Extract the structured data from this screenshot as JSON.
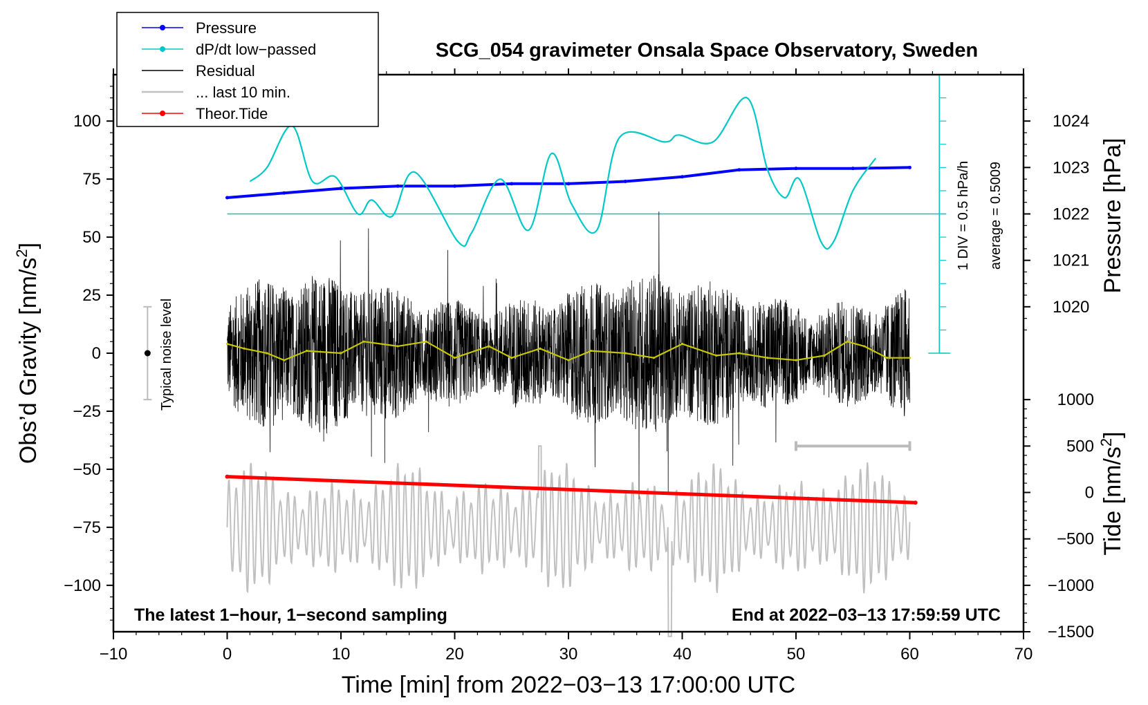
{
  "chart_data": {
    "type": "line",
    "title": "SCG_054 gravimeter Onsala Space Observatory, Sweden",
    "xlabel": "Time [min] from 2022−03−13 17:00:00 UTC",
    "ylabel_left_text": "Obs’d Gravity [nm/s",
    "ylabel_left_sup": "2",
    "ylabel_left_end": "]",
    "ylabel_right_pressure": "Pressure [hPa]",
    "ylabel_right_tide_text": "Tide [nm/s",
    "ylabel_right_tide_sup": "2",
    "ylabel_right_tide_end": "]",
    "xlim": [
      -10,
      70
    ],
    "ylim": [
      -120,
      120
    ],
    "x_ticks": [
      -10,
      0,
      10,
      20,
      30,
      40,
      50,
      60,
      70
    ],
    "x_tick_labels": [
      "−10",
      "0",
      "10",
      "20",
      "30",
      "40",
      "50",
      "60",
      "70"
    ],
    "y_ticks": [
      100,
      75,
      50,
      25,
      0,
      -25,
      -50,
      -75,
      -100
    ],
    "y_tick_labels": [
      "100",
      "75",
      "50",
      "25",
      "0",
      "−25",
      "−50",
      "−75",
      "−100"
    ],
    "pressure_ticks": [
      1024,
      1023,
      1022,
      1021,
      1020
    ],
    "pressure_tick_labels": [
      "1024",
      "1023",
      "1022",
      "1021",
      "1020"
    ],
    "tide_ticks": [
      1000,
      500,
      0,
      -500,
      -1000,
      -1500
    ],
    "tide_tick_labels": [
      "1000",
      "500",
      "0",
      "−500",
      "−1000",
      "−1500"
    ],
    "legend": [
      {
        "label": "Pressure",
        "color": "#0000ff",
        "marker": true
      },
      {
        "label": "dP/dt low−passed",
        "color": "#00c8c8",
        "marker": true
      },
      {
        "label": "Residual",
        "color": "#000000",
        "marker": false
      },
      {
        "label": "... last 10 min.",
        "color": "#c0c0c0",
        "marker": false
      },
      {
        "label": "Theor.Tide",
        "color": "#ff0000",
        "marker": true
      }
    ],
    "annotations": {
      "bottom_left": "The latest 1−hour, 1−second sampling",
      "bottom_right": "End at 2022−03−13 17:59:59 UTC",
      "noise_label": "Typical noise level",
      "dpdt_scale": "1 DIV = 0.5 hPa/h",
      "dpdt_average": "average = 0.5009"
    },
    "series": [
      {
        "name": "Pressure",
        "unit": "hPa",
        "color": "#0000ff",
        "x": [
          0,
          5,
          10,
          15,
          20,
          25,
          30,
          35,
          40,
          45,
          50,
          55,
          60
        ],
        "y": [
          1022.35,
          1022.45,
          1022.55,
          1022.6,
          1022.6,
          1022.65,
          1022.65,
          1022.7,
          1022.8,
          1022.95,
          1022.98,
          1022.98,
          1023.0
        ]
      },
      {
        "name": "dP/dt low−passed",
        "unit": "y-axis units (nm/s² scale)",
        "color": "#00c8c8",
        "baseline": 60,
        "x": [
          2,
          3.5,
          5.7,
          7.5,
          9.5,
          11.5,
          12.7,
          14.5,
          16.5,
          20.3,
          21.5,
          24.0,
          26.5,
          28.5,
          30.3,
          32.5,
          34.5,
          38.5,
          39.7,
          42.7,
          45.7,
          47.5,
          49.0,
          50.3,
          52.2,
          53.3,
          55.0,
          57.0
        ],
        "y": [
          74,
          80,
          98,
          74,
          76,
          60,
          66,
          59,
          78,
          48,
          52,
          75,
          53,
          86,
          64,
          53,
          93,
          91,
          94,
          91,
          110,
          79,
          67,
          75,
          48,
          48,
          70,
          84
        ]
      },
      {
        "name": "Residual",
        "unit": "nm/s²",
        "color": "#000000",
        "x_start": 0,
        "x_end": 60,
        "envelope": [
          25,
          -25
        ]
      },
      {
        "name": "Residual smoothed",
        "unit": "nm/s²",
        "color": "#c8c800",
        "x": [
          0,
          1.5,
          3.5,
          5,
          7,
          10,
          12,
          15,
          17.5,
          20,
          23,
          25,
          27.5,
          30,
          32,
          35,
          37.5,
          40,
          43,
          45,
          47.5,
          50,
          52.5,
          54.5,
          56,
          58,
          60
        ],
        "y": [
          4,
          2,
          0,
          -3,
          1,
          0,
          5,
          3,
          5,
          -2,
          3,
          -2,
          2,
          -3,
          1,
          0,
          -2,
          4,
          -1,
          0,
          -2,
          -3,
          -1,
          5,
          3,
          -2,
          -2
        ]
      },
      {
        "name": "... last 10 min.",
        "unit": "nm/s²",
        "color": "#c0c0c0",
        "x_start": 0,
        "x_end": 60,
        "envelope": [
          -50,
          -100
        ]
      },
      {
        "name": "Theor.Tide",
        "unit": "nm/s²",
        "color": "#ff0000",
        "x": [
          0,
          60.5
        ],
        "y": [
          170,
          -110
        ]
      }
    ],
    "noise_level": {
      "x": -7,
      "value": 0,
      "range": [
        -20,
        20
      ]
    },
    "last_10min_bar": {
      "x": [
        50,
        60
      ],
      "y": -40
    }
  }
}
